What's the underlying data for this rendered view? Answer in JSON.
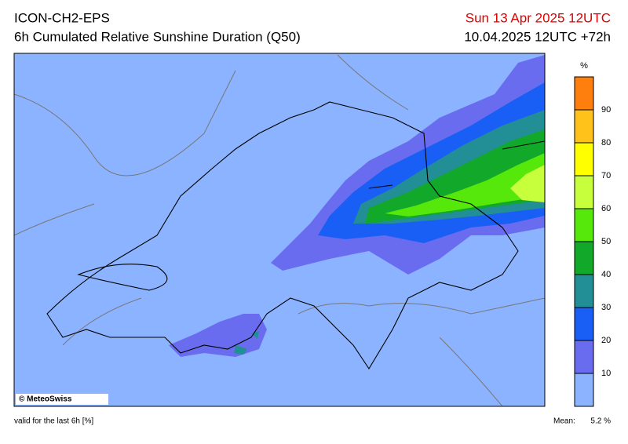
{
  "header": {
    "title": "ICON-CH2-EPS",
    "subtitle": "6h Cumulated Relative Sunshine Duration (Q50)",
    "valid_date": "Sun 13 Apr 2025 12UTC",
    "run": "10.04.2025 12UTC +72h"
  },
  "map": {
    "copyright": "© MeteoSwiss"
  },
  "colorbar": {
    "unit": "%",
    "range": [
      0,
      100
    ],
    "ticks": [
      10,
      20,
      30,
      40,
      50,
      60,
      70,
      80,
      90
    ],
    "colors": [
      "#8cb3ff",
      "#6a6cf0",
      "#1a5ff5",
      "#218f95",
      "#12a82a",
      "#56e80a",
      "#c8ff3c",
      "#ffff00",
      "#ffc21a",
      "#ff7f0e"
    ]
  },
  "footer": {
    "note": "valid for the last 6h [%]",
    "mean_label": "Mean:",
    "mean_value": "5.2 %"
  }
}
